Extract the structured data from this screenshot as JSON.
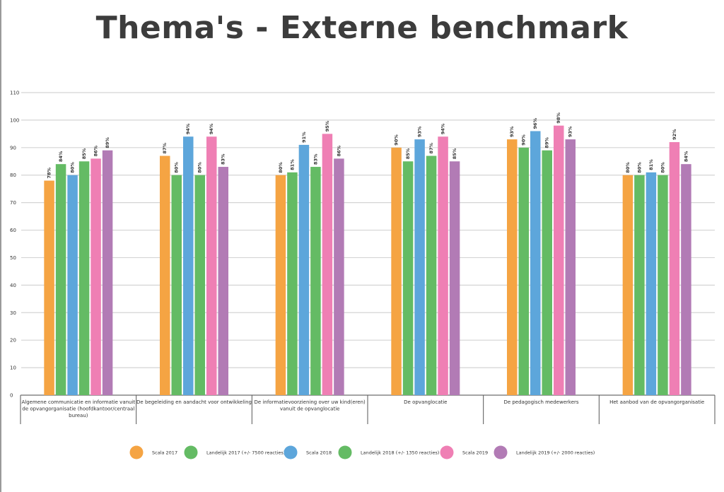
{
  "title": "Thema's - Externe benchmark",
  "colors": {
    "Scala 2017": "#f5a443",
    "Landelijk 2017": "#64bb64",
    "Scala 2018": "#5da6db",
    "Landelijk 2018": "#64bb64",
    "Scala 2019": "#ef7fb4",
    "Landelijk 2019": "#b27bb5"
  },
  "chart_data": {
    "type": "bar",
    "title": "Thema's - Externe benchmark",
    "ylim": [
      0,
      110
    ],
    "yticks": [
      "0",
      "10",
      "20",
      "30",
      "40",
      "50",
      "60",
      "70",
      "80",
      "90",
      "100",
      "110"
    ],
    "grid": true,
    "legend_position": "bottom",
    "categories": [
      [
        "Algemene communicatie en informatie vanuit",
        "de opvangorganisatie (hoofdkantoor/centraal",
        "bureau)"
      ],
      [
        "De begeleiding en aandacht voor ontwikkeling"
      ],
      [
        "De informatievoorziening over uw kind(eren)",
        "vanuit de opvanglocatie"
      ],
      [
        "De opvanglocatie"
      ],
      [
        "De pedagogisch medewerkers"
      ],
      [
        "Het aanbod van de opvangorganisatie"
      ]
    ],
    "series": [
      {
        "name": "Scala 2017",
        "color": "#f5a443",
        "values": [
          78,
          87,
          80,
          90,
          93,
          80
        ],
        "labels": [
          "78%",
          "87%",
          "80%",
          "90%",
          "93%",
          "80%"
        ]
      },
      {
        "name": "Landelijk 2017 (+/- 7500 reacties)",
        "color": "#64bb64",
        "values": [
          84,
          80,
          81,
          85,
          90,
          80
        ],
        "labels": [
          "84%",
          "80%",
          "81%",
          "85%",
          "90%",
          "80%"
        ]
      },
      {
        "name": "Scala 2018",
        "color": "#5da6db",
        "values": [
          80,
          94,
          91,
          93,
          96,
          81
        ],
        "labels": [
          "80%",
          "94%",
          "91%",
          "93%",
          "96%",
          "81%"
        ]
      },
      {
        "name": "Landelijk 2018 (+/- 1350 reacties)",
        "color": "#64bb64",
        "values": [
          85,
          80,
          83,
          87,
          89,
          80
        ],
        "labels": [
          "85%",
          "80%",
          "83%",
          "87%",
          "89%",
          "80%"
        ]
      },
      {
        "name": "Scala 2019",
        "color": "#ef7fb4",
        "values": [
          86,
          94,
          95,
          94,
          98,
          92
        ],
        "labels": [
          "86%",
          "94%",
          "95%",
          "94%",
          "98%",
          "92%"
        ]
      },
      {
        "name": "Landelijk 2019 (+/- 2000 reacties)",
        "color": "#b27bb5",
        "values": [
          89,
          83,
          86,
          85,
          93,
          84
        ],
        "labels": [
          "89%",
          "83%",
          "86%",
          "85%",
          "93%",
          "84%"
        ]
      }
    ]
  }
}
